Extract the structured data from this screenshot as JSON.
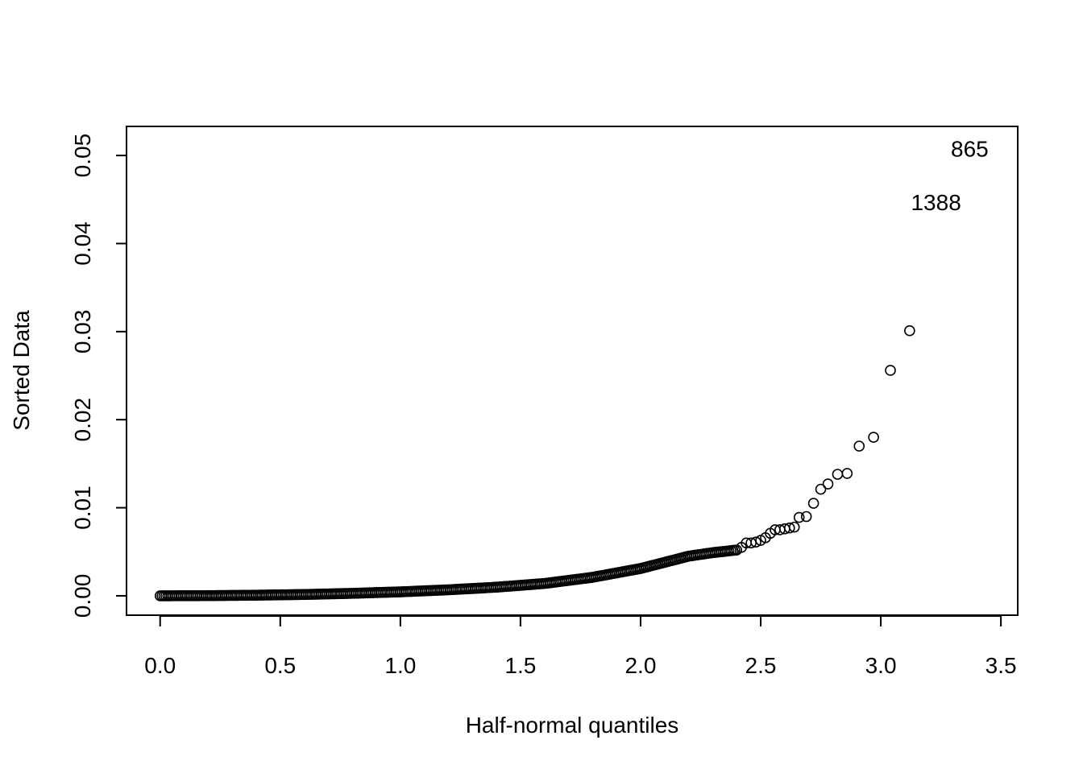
{
  "chart_data": {
    "type": "scatter",
    "xlabel": "Half-normal quantiles",
    "ylabel": "Sorted Data",
    "xlim": [
      -0.14,
      3.57
    ],
    "ylim": [
      -0.0022,
      0.0533
    ],
    "x_ticks": [
      0.0,
      0.5,
      1.0,
      1.5,
      2.0,
      2.5,
      3.0,
      3.5
    ],
    "x_tick_labels": [
      "0.0",
      "0.5",
      "1.0",
      "1.5",
      "2.0",
      "2.5",
      "3.0",
      "3.5"
    ],
    "y_ticks": [
      0.0,
      0.01,
      0.02,
      0.03,
      0.04,
      0.05
    ],
    "y_tick_labels": [
      "0.00",
      "0.01",
      "0.02",
      "0.03",
      "0.04",
      "0.05"
    ],
    "grid": false,
    "marker": "open-circle",
    "point_color": "#000000",
    "curve": {
      "description": "dense band of sorted points",
      "x": [
        0.0,
        0.2,
        0.4,
        0.6,
        0.8,
        1.0,
        1.2,
        1.4,
        1.6,
        1.8,
        2.0,
        2.1,
        2.2,
        2.3,
        2.4
      ],
      "y": [
        0.0,
        2e-05,
        7e-05,
        0.00015,
        0.00028,
        0.00045,
        0.00068,
        0.00098,
        0.0014,
        0.0021,
        0.0031,
        0.0038,
        0.0045,
        0.0049,
        0.0052
      ]
    },
    "outlier_points": [
      {
        "x": 2.42,
        "y": 0.0055
      },
      {
        "x": 2.44,
        "y": 0.006
      },
      {
        "x": 2.46,
        "y": 0.006
      },
      {
        "x": 2.48,
        "y": 0.0061
      },
      {
        "x": 2.5,
        "y": 0.0063
      },
      {
        "x": 2.52,
        "y": 0.0066
      },
      {
        "x": 2.54,
        "y": 0.0071
      },
      {
        "x": 2.56,
        "y": 0.0075
      },
      {
        "x": 2.58,
        "y": 0.0075
      },
      {
        "x": 2.6,
        "y": 0.0076
      },
      {
        "x": 2.62,
        "y": 0.0077
      },
      {
        "x": 2.64,
        "y": 0.0078
      },
      {
        "x": 2.66,
        "y": 0.0089
      },
      {
        "x": 2.69,
        "y": 0.009
      },
      {
        "x": 2.72,
        "y": 0.0105
      },
      {
        "x": 2.75,
        "y": 0.0121
      },
      {
        "x": 2.78,
        "y": 0.0127
      },
      {
        "x": 2.82,
        "y": 0.0138
      },
      {
        "x": 2.86,
        "y": 0.0139
      },
      {
        "x": 2.91,
        "y": 0.017
      },
      {
        "x": 2.97,
        "y": 0.018
      },
      {
        "x": 3.04,
        "y": 0.0256
      },
      {
        "x": 3.12,
        "y": 0.0301
      }
    ],
    "annotations": [
      {
        "text": "865",
        "x": 3.37,
        "y": 0.0508
      },
      {
        "text": "1388",
        "x": 3.23,
        "y": 0.0447
      }
    ]
  }
}
